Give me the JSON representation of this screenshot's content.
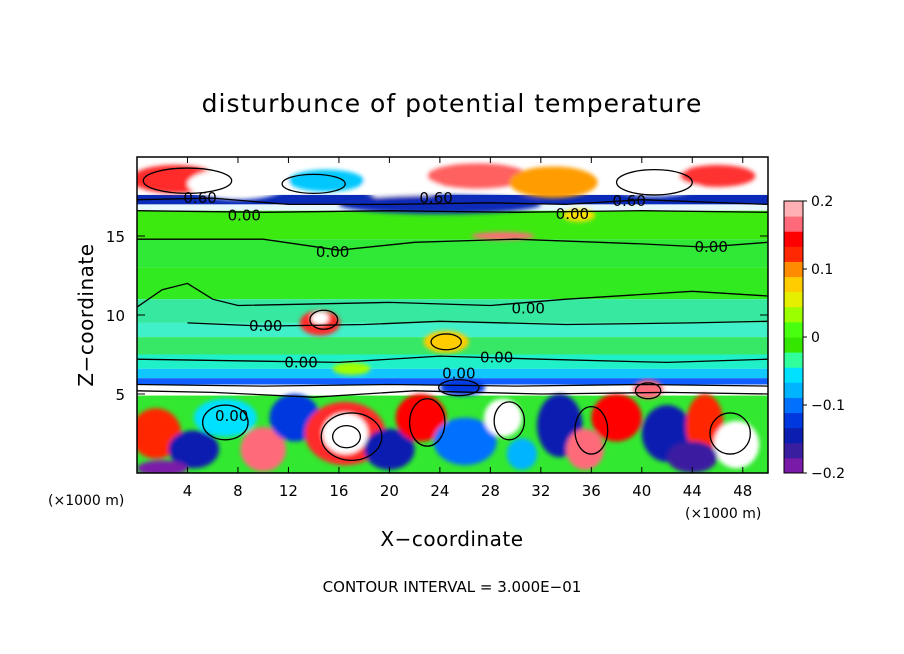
{
  "chart_data": {
    "type": "heatmap",
    "title": "disturbunce of potential temperature",
    "xlabel": "X−coordinate",
    "ylabel": "Z−coordinate",
    "x_unit_label": "(×1000 m)",
    "z_unit_label": "(×1000 m)",
    "footer": "CONTOUR INTERVAL = 3.000E−01",
    "xlim": [
      0,
      50
    ],
    "ylim": [
      0,
      20
    ],
    "x_ticks": [
      4,
      8,
      12,
      16,
      20,
      24,
      28,
      32,
      36,
      40,
      44,
      48
    ],
    "y_ticks": [
      5,
      10,
      15
    ],
    "colorbar": {
      "range": [
        -0.2,
        0.2
      ],
      "ticks": [
        0.2,
        0.1,
        0,
        -0.1,
        -0.2
      ],
      "tick_labels": [
        "0.2",
        "0.1",
        "0",
        "−0.1",
        "−0.2"
      ],
      "colors": [
        "#7a1aa8",
        "#3a1ea0",
        "#0b1eb0",
        "#0038e0",
        "#0070ff",
        "#00b4ff",
        "#00e0ff",
        "#30ff9c",
        "#34e600",
        "#48ff10",
        "#9cff00",
        "#e6ef00",
        "#ffcc00",
        "#ff8c00",
        "#ff2800",
        "#ff0000",
        "#ff6a7a",
        "#ffb0b4"
      ]
    },
    "contour_labels": [
      {
        "text": "0.60",
        "x": 5.0,
        "z": 17.4
      },
      {
        "text": "0.00",
        "x": 8.5,
        "z": 16.3
      },
      {
        "text": "0.60",
        "x": 23.7,
        "z": 17.4
      },
      {
        "text": "0.60",
        "x": 39.0,
        "z": 17.2
      },
      {
        "text": "0.00",
        "x": 34.5,
        "z": 16.4
      },
      {
        "text": "0.00",
        "x": 15.5,
        "z": 14.0
      },
      {
        "text": "0.00",
        "x": 45.5,
        "z": 14.3
      },
      {
        "text": "0.00",
        "x": 31.0,
        "z": 10.4
      },
      {
        "text": "0.00",
        "x": 10.2,
        "z": 9.3
      },
      {
        "text": "0.00",
        "x": 28.5,
        "z": 7.3
      },
      {
        "text": "0.00",
        "x": 25.5,
        "z": 6.3
      },
      {
        "text": "0.00",
        "x": 7.5,
        "z": 3.6
      },
      {
        "text": "0.00",
        "x": 13.0,
        "z": 7.0
      }
    ]
  }
}
